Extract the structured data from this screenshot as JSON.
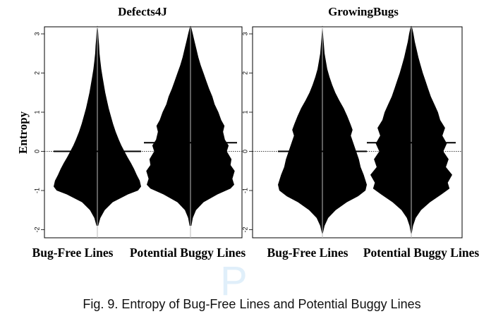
{
  "chart_data": [
    {
      "type": "beanplot",
      "title": "Defects4J",
      "ylabel": "Entropy",
      "ylim": [
        -2.2,
        3.2
      ],
      "yticks": [
        -2,
        -1,
        0,
        1,
        2,
        3
      ],
      "overall_line": 0,
      "categories": [
        "Bug-Free Lines",
        "Potential Buggy Lines"
      ],
      "series": [
        {
          "category": "Bug-Free Lines",
          "mean": 0.0,
          "density": [
            [
              -1.9,
              0.02
            ],
            [
              -1.7,
              0.07
            ],
            [
              -1.5,
              0.17
            ],
            [
              -1.3,
              0.35
            ],
            [
              -1.1,
              0.7
            ],
            [
              -1.0,
              0.93
            ],
            [
              -0.9,
              1.0
            ],
            [
              -0.75,
              0.97
            ],
            [
              -0.6,
              0.9
            ],
            [
              -0.45,
              0.84
            ],
            [
              -0.3,
              0.77
            ],
            [
              -0.15,
              0.69
            ],
            [
              0.0,
              0.62
            ],
            [
              0.15,
              0.55
            ],
            [
              0.3,
              0.49
            ],
            [
              0.5,
              0.42
            ],
            [
              0.7,
              0.36
            ],
            [
              0.9,
              0.31
            ],
            [
              1.1,
              0.26
            ],
            [
              1.3,
              0.22
            ],
            [
              1.5,
              0.18
            ],
            [
              1.7,
              0.15
            ],
            [
              1.9,
              0.12
            ],
            [
              2.1,
              0.09
            ],
            [
              2.3,
              0.07
            ],
            [
              2.5,
              0.05
            ],
            [
              2.7,
              0.04
            ],
            [
              2.9,
              0.025
            ],
            [
              3.1,
              0.015
            ],
            [
              3.2,
              0.005
            ]
          ]
        },
        {
          "category": "Potential Buggy Lines",
          "mean": 0.22,
          "density": [
            [
              -1.9,
              0.02
            ],
            [
              -1.7,
              0.05
            ],
            [
              -1.5,
              0.12
            ],
            [
              -1.3,
              0.28
            ],
            [
              -1.1,
              0.58
            ],
            [
              -0.95,
              0.86
            ],
            [
              -0.85,
              0.94
            ],
            [
              -0.7,
              0.9
            ],
            [
              -0.5,
              0.95
            ],
            [
              -0.35,
              0.86
            ],
            [
              -0.2,
              0.88
            ],
            [
              0.0,
              0.78
            ],
            [
              0.15,
              0.82
            ],
            [
              0.3,
              0.74
            ],
            [
              0.5,
              0.7
            ],
            [
              0.65,
              0.73
            ],
            [
              0.8,
              0.66
            ],
            [
              1.0,
              0.6
            ],
            [
              1.2,
              0.52
            ],
            [
              1.4,
              0.47
            ],
            [
              1.6,
              0.4
            ],
            [
              1.8,
              0.34
            ],
            [
              2.0,
              0.28
            ],
            [
              2.2,
              0.22
            ],
            [
              2.4,
              0.17
            ],
            [
              2.6,
              0.13
            ],
            [
              2.8,
              0.09
            ],
            [
              3.0,
              0.05
            ],
            [
              3.15,
              0.02
            ],
            [
              3.2,
              0.005
            ]
          ]
        }
      ]
    },
    {
      "type": "beanplot",
      "title": "GrowingBugs",
      "ylabel": "",
      "ylim": [
        -2.2,
        3.2
      ],
      "yticks": [
        -2,
        -1,
        0,
        1,
        2,
        3
      ],
      "overall_line": 0,
      "categories": [
        "Bug-Free Lines",
        "Potential Buggy Lines"
      ],
      "series": [
        {
          "category": "Bug-Free Lines",
          "mean": 0.0,
          "density": [
            [
              -2.1,
              0.01
            ],
            [
              -1.9,
              0.05
            ],
            [
              -1.7,
              0.13
            ],
            [
              -1.5,
              0.3
            ],
            [
              -1.3,
              0.55
            ],
            [
              -1.15,
              0.8
            ],
            [
              -1.0,
              0.97
            ],
            [
              -0.85,
              1.0
            ],
            [
              -0.6,
              0.93
            ],
            [
              -0.4,
              0.86
            ],
            [
              -0.2,
              0.82
            ],
            [
              0.0,
              0.76
            ],
            [
              0.2,
              0.7
            ],
            [
              0.4,
              0.64
            ],
            [
              0.55,
              0.68
            ],
            [
              0.7,
              0.63
            ],
            [
              0.9,
              0.56
            ],
            [
              1.1,
              0.48
            ],
            [
              1.3,
              0.38
            ],
            [
              1.5,
              0.29
            ],
            [
              1.7,
              0.22
            ],
            [
              1.9,
              0.16
            ],
            [
              2.1,
              0.11
            ],
            [
              2.3,
              0.08
            ],
            [
              2.5,
              0.05
            ],
            [
              2.7,
              0.035
            ],
            [
              2.9,
              0.02
            ],
            [
              3.1,
              0.01
            ],
            [
              3.2,
              0.005
            ]
          ]
        },
        {
          "category": "Potential Buggy Lines",
          "mean": 0.22,
          "density": [
            [
              -2.1,
              0.01
            ],
            [
              -1.9,
              0.04
            ],
            [
              -1.7,
              0.1
            ],
            [
              -1.5,
              0.22
            ],
            [
              -1.3,
              0.42
            ],
            [
              -1.1,
              0.68
            ],
            [
              -0.95,
              0.86
            ],
            [
              -0.8,
              0.82
            ],
            [
              -0.6,
              0.92
            ],
            [
              -0.4,
              0.78
            ],
            [
              -0.2,
              0.84
            ],
            [
              0.0,
              0.72
            ],
            [
              0.2,
              0.8
            ],
            [
              0.4,
              0.7
            ],
            [
              0.6,
              0.76
            ],
            [
              0.8,
              0.65
            ],
            [
              1.0,
              0.6
            ],
            [
              1.2,
              0.52
            ],
            [
              1.4,
              0.44
            ],
            [
              1.6,
              0.38
            ],
            [
              1.8,
              0.32
            ],
            [
              2.0,
              0.26
            ],
            [
              2.2,
              0.21
            ],
            [
              2.4,
              0.16
            ],
            [
              2.6,
              0.12
            ],
            [
              2.8,
              0.08
            ],
            [
              3.0,
              0.05
            ],
            [
              3.15,
              0.02
            ],
            [
              3.2,
              0.005
            ]
          ]
        }
      ]
    }
  ],
  "caption": "Fig. 9.  Entropy of Bug-Free Lines and Potential Buggy Lines"
}
